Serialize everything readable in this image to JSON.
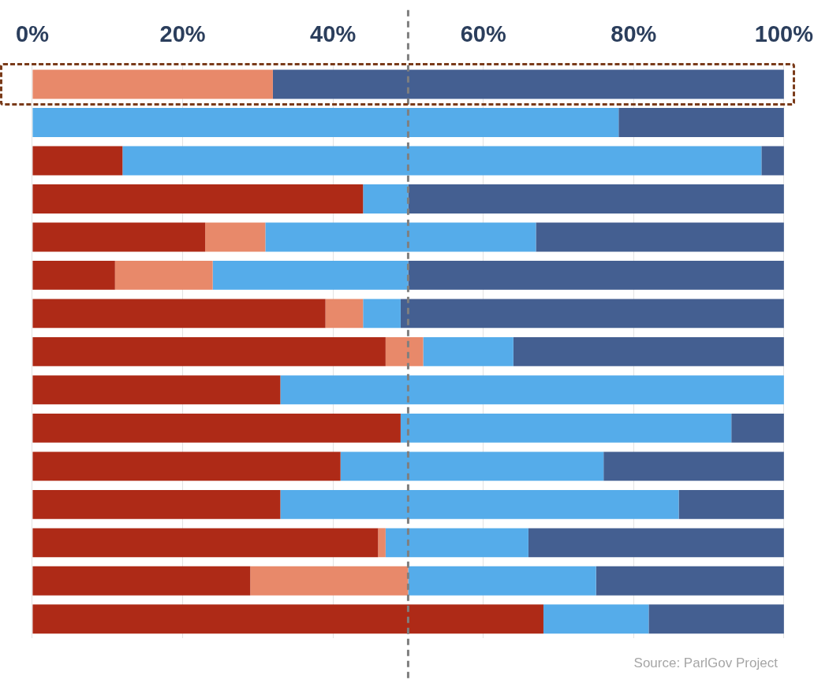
{
  "chart_data": {
    "type": "bar",
    "orientation": "horizontal",
    "stacked": true,
    "categories": [
      null,
      null,
      null,
      null,
      null,
      null,
      null,
      null,
      null,
      null,
      null,
      null,
      null,
      null,
      null
    ],
    "series": [
      {
        "color": "#ae2a17",
        "values": [
          0,
          0,
          12,
          44,
          23,
          11,
          39,
          47,
          33,
          49,
          41,
          33,
          46,
          29,
          68
        ]
      },
      {
        "color": "#e8896a",
        "values": [
          32,
          0,
          0,
          0,
          8,
          13,
          5,
          5,
          0,
          0,
          0,
          0,
          1,
          21,
          0
        ]
      },
      {
        "color": "#55acea",
        "values": [
          0,
          78,
          85,
          6,
          36,
          26,
          5,
          12,
          67,
          44,
          35,
          53,
          19,
          25,
          14
        ]
      },
      {
        "color": "#445f91",
        "values": [
          68,
          22,
          3,
          50,
          33,
          50,
          51,
          36,
          0,
          7,
          24,
          14,
          34,
          25,
          18
        ]
      }
    ],
    "xlim": [
      0,
      100
    ],
    "xticks": [
      {
        "value": 0,
        "label": "0%"
      },
      {
        "value": 20,
        "label": "20%"
      },
      {
        "value": 40,
        "label": "40%"
      },
      {
        "value": 60,
        "label": "60%"
      },
      {
        "value": 80,
        "label": "80%"
      },
      {
        "value": 100,
        "label": "100%"
      }
    ],
    "ref_lines": [
      {
        "axis": "x",
        "value": 50,
        "color": "#7f7f7f",
        "line_style": "dashed"
      }
    ],
    "annotations": [
      "Source: ParlGov Project"
    ],
    "grid": "x",
    "legend": false,
    "tick_labels": "x"
  }
}
